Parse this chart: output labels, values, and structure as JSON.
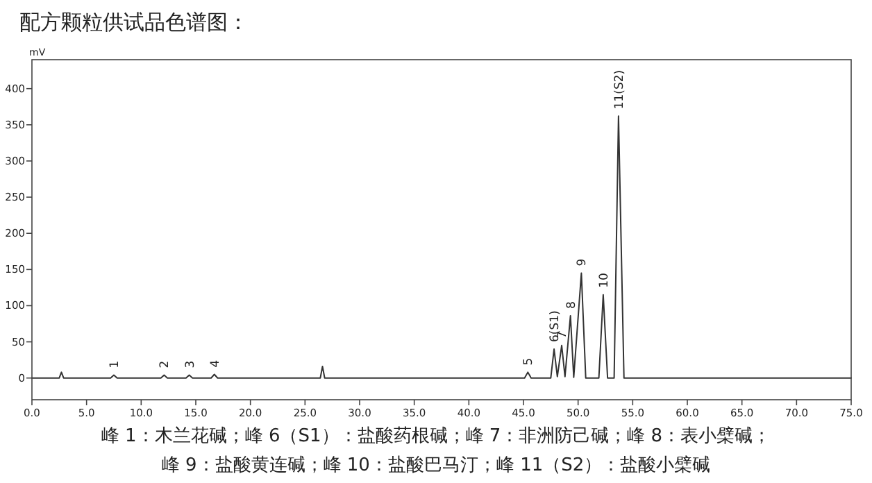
{
  "chart_data": {
    "type": "line",
    "title": "配方颗粒供试品色谱图：",
    "ylabel": "mV",
    "xlim": [
      0,
      75
    ],
    "ylim": [
      -30,
      440
    ],
    "xticks": [
      {
        "value": 0,
        "label": "0.0"
      },
      {
        "value": 5,
        "label": "5.0"
      },
      {
        "value": 10,
        "label": "10.0"
      },
      {
        "value": 15,
        "label": "15.0"
      },
      {
        "value": 20,
        "label": "20.0"
      },
      {
        "value": 25,
        "label": "25.0"
      },
      {
        "value": 30,
        "label": "30.0"
      },
      {
        "value": 35,
        "label": "35.0"
      },
      {
        "value": 40,
        "label": "40.0"
      },
      {
        "value": 45,
        "label": "45.0"
      },
      {
        "value": 50,
        "label": "50.0"
      },
      {
        "value": 55,
        "label": "55.0"
      },
      {
        "value": 60,
        "label": "60.0"
      },
      {
        "value": 65,
        "label": "65.0"
      },
      {
        "value": 70,
        "label": "70.0"
      },
      {
        "value": 75,
        "label": "75.0"
      }
    ],
    "yticks": [
      0,
      50,
      100,
      150,
      200,
      250,
      300,
      350,
      400
    ],
    "grid": false,
    "marker": "none",
    "line_style": "solid",
    "series": [
      {
        "color": "#333333",
        "x": [
          0,
          2.5,
          2.7,
          2.9,
          7.2,
          7.5,
          7.8,
          11.8,
          12.1,
          12.4,
          14.1,
          14.4,
          14.7,
          16.4,
          16.7,
          17.0,
          26.4,
          26.6,
          26.8,
          45.1,
          45.4,
          45.7,
          47.5,
          47.8,
          48.1,
          48.5,
          48.8,
          49.3,
          49.6,
          50.3,
          50.7,
          51.9,
          52.3,
          52.7,
          53.3,
          53.7,
          54.2,
          75
        ],
        "values": [
          0,
          0,
          8,
          0,
          0,
          4,
          0,
          0,
          4,
          0,
          0,
          4,
          0,
          0,
          5,
          0,
          0,
          16,
          0,
          0,
          8,
          0,
          0,
          40,
          2,
          45,
          2,
          86,
          1,
          145,
          0,
          0,
          115,
          0,
          0,
          362,
          0,
          0
        ]
      }
    ],
    "annotations": [
      {
        "text": "1",
        "x": 7.5,
        "y": 4
      },
      {
        "text": "2",
        "x": 12.1,
        "y": 4
      },
      {
        "text": "3",
        "x": 14.4,
        "y": 4
      },
      {
        "text": "4",
        "x": 16.7,
        "y": 5
      },
      {
        "text": "5",
        "x": 45.4,
        "y": 8
      },
      {
        "text": "6(S1)",
        "x": 47.8,
        "y": 40
      },
      {
        "text": "7",
        "x": 48.5,
        "y": 45
      },
      {
        "text": "8",
        "x": 49.3,
        "y": 86
      },
      {
        "text": "9",
        "x": 50.3,
        "y": 145
      },
      {
        "text": "10",
        "x": 52.3,
        "y": 115
      },
      {
        "text": "11(S2)",
        "x": 53.7,
        "y": 362
      },
      "峰 1：木兰花碱；峰 6（S1）：盐酸药根碱；峰 7：非洲防己碱；峰 8：表小檗碱；",
      "峰 9：盐酸黄连碱；峰 10：盐酸巴马汀；峰 11（S2）：盐酸小檗碱"
    ]
  }
}
